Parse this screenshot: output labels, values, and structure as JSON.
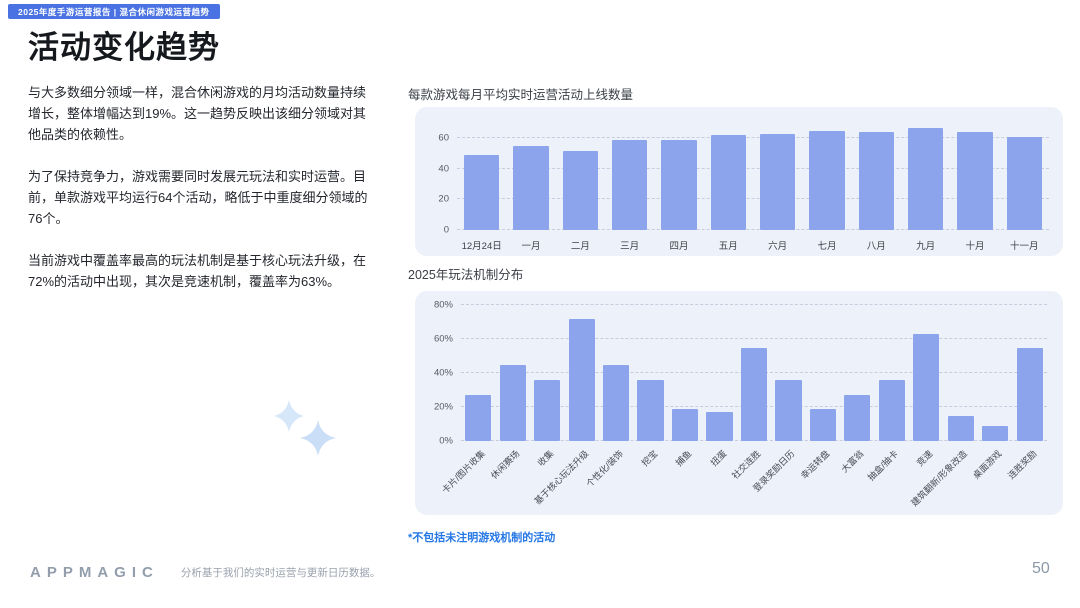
{
  "header": {
    "report_badge": "2025年度手游运营报告 | 混合休闲游戏运营趋势"
  },
  "title": "活动变化趋势",
  "body": {
    "paragraphs": [
      "与大多数细分领域一样，混合休闲游戏的月均活动数量持续增长，整体增幅达到19%。这一趋势反映出该细分领域对其他品类的依赖性。",
      "为了保持竞争力，游戏需要同时发展元玩法和实时运营。目前，单款游戏平均运行64个活动，略低于中重度细分领域的76个。",
      "当前游戏中覆盖率最高的玩法机制是基于核心玩法升级，在72%的活动中出现，其次是竞速机制，覆盖率为63%。"
    ]
  },
  "chart_data": [
    {
      "type": "bar",
      "title": "每款游戏每月平均实时运营活动上线数量",
      "categories": [
        "12月24日",
        "一月",
        "二月",
        "三月",
        "四月",
        "五月",
        "六月",
        "七月",
        "八月",
        "九月",
        "十月",
        "十一月"
      ],
      "values": [
        49,
        55,
        52,
        59,
        59,
        62,
        63,
        65,
        64,
        67,
        64,
        61
      ],
      "ylim": [
        0,
        70
      ],
      "yticks": [
        0,
        20,
        40,
        60
      ],
      "ytick_suffix": "",
      "grid": "horizontal-dashed",
      "legend": "none",
      "bar_color": "#8ba4eb",
      "rotate_x_labels": false
    },
    {
      "type": "bar",
      "title": "2025年玩法机制分布",
      "categories": [
        "卡片/图片收集",
        "休闲赛场",
        "收集",
        "基于核心玩法升级",
        "个性化/装饰",
        "挖宝",
        "捕鱼",
        "扭蛋",
        "社交连胜",
        "登录奖励日历",
        "幸运转盘",
        "大富翁",
        "抽盒/抽卡",
        "竞速",
        "建筑翻新/形象改造",
        "桌面游戏",
        "连胜奖励"
      ],
      "values": [
        27,
        45,
        36,
        72,
        45,
        36,
        19,
        17,
        55,
        36,
        19,
        27,
        36,
        63,
        15,
        9,
        55
      ],
      "ylim": [
        0,
        80
      ],
      "yticks": [
        0,
        20,
        40,
        60,
        80
      ],
      "ytick_suffix": "%",
      "grid": "horizontal-dashed",
      "legend": "none",
      "bar_color": "#8ba4eb",
      "rotate_x_labels": true,
      "footnote": "*不包括未注明游戏机制的活动"
    }
  ],
  "footer": {
    "logo": "APPMAGIC",
    "note": "分析基于我们的实时运营与更新日历数据。",
    "page_number": "50"
  },
  "colors": {
    "badge_bg": "#4a72e3",
    "bar": "#8ba4eb",
    "card_bg": "#edf1f9",
    "footnote_blue": "#2577e5",
    "sparkle": "#d4e5f9"
  }
}
